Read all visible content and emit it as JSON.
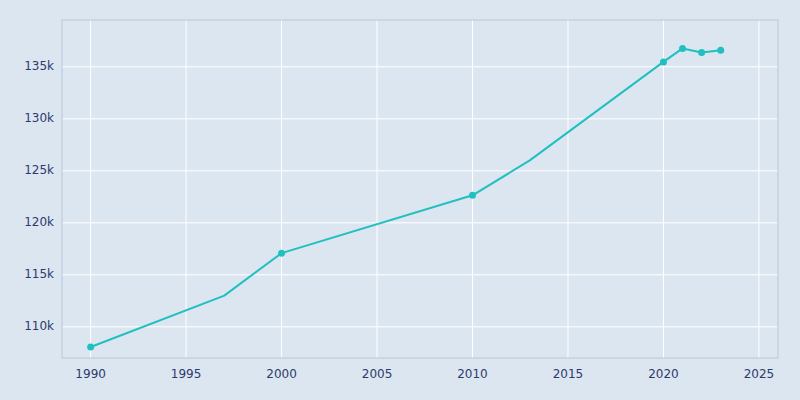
{
  "chart_data": {
    "type": "line",
    "series": [
      {
        "type": "line",
        "color": "#20c0c0",
        "x": [
          1990,
          1997,
          2000,
          2010,
          2013,
          2020,
          2021,
          2022,
          2023
        ],
        "values": [
          108056,
          113000,
          117083,
          122643,
          126000,
          135471,
          136765,
          136373,
          136594
        ]
      },
      {
        "type": "scatter",
        "marker": "circle",
        "color": "#20c0c0",
        "x": [
          1990,
          2000,
          2010,
          2020,
          2021,
          2022,
          2023
        ],
        "values": [
          108056,
          117083,
          122643,
          135471,
          136765,
          136373,
          136594
        ]
      }
    ],
    "xlim": [
      1988.5,
      2026
    ],
    "ylim": [
      107000,
      139500
    ],
    "xticks": [
      1990,
      1995,
      2000,
      2005,
      2010,
      2015,
      2020,
      2025
    ],
    "yticks": [
      {
        "value": 110000,
        "label": "110k"
      },
      {
        "value": 115000,
        "label": "115k"
      },
      {
        "value": 120000,
        "label": "120k"
      },
      {
        "value": 125000,
        "label": "125k"
      },
      {
        "value": 130000,
        "label": "130k"
      },
      {
        "value": 135000,
        "label": "135k"
      }
    ],
    "grid": true
  }
}
